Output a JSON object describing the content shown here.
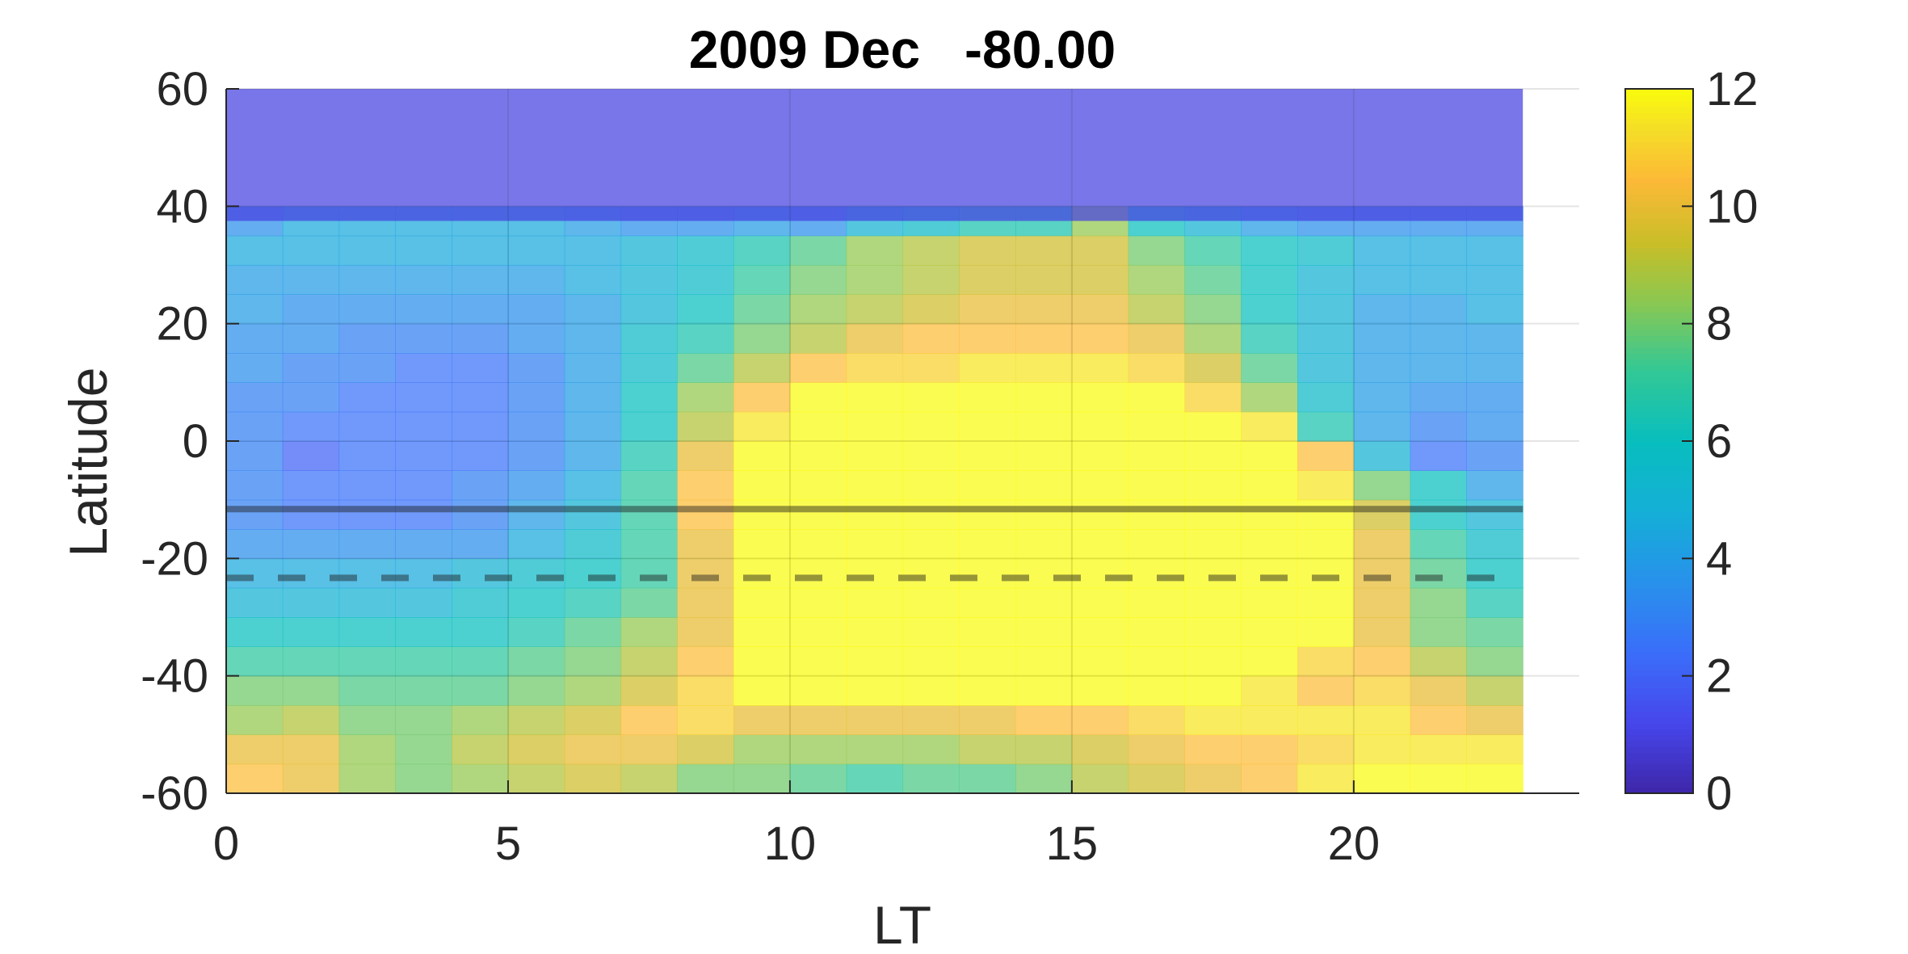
{
  "chart_data": {
    "type": "heatmap",
    "title": "2009 Dec   -80.00",
    "xlabel": "LT",
    "ylabel": "Latitude",
    "xlim": [
      0,
      24
    ],
    "ylim": [
      -60,
      60
    ],
    "xticks": [
      "0",
      "5",
      "10",
      "15",
      "20"
    ],
    "yticks": [
      "60",
      "40",
      "20",
      "0",
      "-20",
      "-40",
      "-60"
    ],
    "colorbar": {
      "min": 0,
      "max": 12,
      "ticks": [
        "12",
        "10",
        "8",
        "6",
        "4",
        "2",
        "0"
      ],
      "colormap": "parula"
    },
    "lt_bins": [
      0,
      1,
      2,
      3,
      4,
      5,
      6,
      7,
      8,
      9,
      10,
      11,
      12,
      13,
      14,
      15,
      16,
      17,
      18,
      19,
      20,
      21,
      22
    ],
    "lat_bins": [
      -57.5,
      -52.5,
      -47.5,
      -42.5,
      -37.5,
      -32.5,
      -27.5,
      -22.5,
      -17.5,
      -12.5,
      -7.5,
      -2.5,
      2.5,
      7.5,
      12.5,
      17.5,
      22.5,
      27.5,
      32.5,
      37.5
    ],
    "values": [
      [
        10.5,
        10.0,
        8.5,
        8.0,
        8.5,
        9.0,
        9.5,
        9.0,
        8.0,
        8.0,
        7.5,
        7.0,
        7.5,
        7.5,
        8.0,
        9.0,
        9.5,
        10.0,
        10.5,
        11.5,
        12.0,
        12.0,
        12.0
      ],
      [
        10.0,
        10.0,
        8.5,
        8.0,
        9.0,
        9.5,
        10.0,
        10.0,
        9.5,
        8.5,
        8.5,
        8.5,
        8.5,
        9.0,
        9.0,
        9.5,
        10.0,
        10.5,
        10.5,
        11.0,
        11.5,
        11.5,
        11.5
      ],
      [
        8.5,
        9.0,
        8.0,
        8.0,
        8.5,
        9.0,
        9.5,
        10.5,
        11.0,
        10.0,
        10.0,
        10.0,
        10.0,
        10.0,
        10.5,
        10.5,
        11.0,
        11.5,
        11.5,
        11.5,
        11.5,
        10.5,
        10.0
      ],
      [
        8.0,
        8.0,
        7.5,
        7.5,
        7.5,
        8.0,
        8.5,
        9.5,
        11.0,
        12.0,
        12.0,
        12.0,
        12.0,
        12.0,
        12.0,
        12.0,
        12.0,
        12.0,
        11.5,
        10.5,
        11.0,
        10.0,
        9.0
      ],
      [
        7.0,
        7.0,
        7.0,
        7.0,
        7.0,
        7.5,
        8.0,
        9.0,
        10.5,
        12.0,
        12.0,
        12.0,
        12.0,
        12.0,
        12.0,
        12.0,
        12.0,
        12.0,
        12.0,
        11.0,
        10.5,
        9.0,
        8.0
      ],
      [
        6.0,
        6.0,
        6.0,
        6.0,
        6.0,
        6.5,
        7.5,
        8.5,
        10.0,
        12.0,
        12.0,
        12.0,
        12.0,
        12.0,
        12.0,
        12.0,
        12.0,
        12.0,
        12.0,
        12.0,
        10.0,
        8.0,
        7.5
      ],
      [
        5.0,
        5.0,
        5.0,
        5.0,
        5.5,
        6.0,
        6.5,
        7.5,
        10.0,
        12.0,
        12.0,
        12.0,
        12.0,
        12.0,
        12.0,
        12.0,
        12.0,
        12.0,
        12.0,
        12.0,
        10.0,
        8.0,
        6.5
      ],
      [
        4.5,
        4.5,
        4.5,
        4.5,
        5.0,
        5.5,
        6.0,
        7.0,
        10.0,
        12.0,
        12.0,
        12.0,
        12.0,
        12.0,
        12.0,
        12.0,
        12.0,
        12.0,
        12.0,
        12.0,
        10.0,
        7.5,
        6.0
      ],
      [
        3.5,
        3.5,
        3.5,
        3.5,
        3.5,
        4.5,
        5.5,
        7.0,
        10.0,
        12.0,
        12.0,
        12.0,
        12.0,
        12.0,
        12.0,
        12.0,
        12.0,
        12.0,
        12.0,
        12.0,
        10.0,
        7.0,
        5.5
      ],
      [
        3.0,
        2.5,
        2.5,
        2.5,
        3.0,
        4.0,
        5.0,
        7.0,
        10.5,
        12.0,
        12.0,
        12.0,
        12.0,
        12.0,
        12.0,
        12.0,
        12.0,
        12.0,
        12.0,
        12.0,
        9.5,
        6.0,
        5.0
      ],
      [
        3.0,
        2.5,
        2.5,
        2.5,
        3.0,
        3.5,
        4.5,
        7.0,
        10.5,
        12.0,
        12.0,
        12.0,
        12.0,
        12.0,
        12.0,
        12.0,
        12.0,
        12.0,
        12.0,
        11.5,
        8.0,
        6.0,
        4.0
      ],
      [
        3.0,
        2.0,
        2.5,
        2.5,
        2.5,
        3.0,
        4.0,
        6.5,
        10.0,
        12.0,
        12.0,
        12.0,
        12.0,
        12.0,
        12.0,
        12.0,
        12.0,
        12.0,
        12.0,
        10.5,
        5.0,
        2.5,
        3.0
      ],
      [
        3.0,
        2.5,
        2.5,
        2.5,
        2.5,
        3.0,
        4.0,
        6.0,
        9.0,
        11.5,
        12.0,
        12.0,
        12.0,
        12.0,
        12.0,
        12.0,
        12.0,
        12.0,
        11.5,
        6.5,
        4.0,
        3.0,
        3.5
      ],
      [
        3.0,
        3.0,
        2.5,
        2.5,
        2.5,
        3.0,
        4.0,
        6.0,
        8.5,
        10.5,
        12.0,
        12.0,
        12.0,
        12.0,
        12.0,
        12.0,
        12.0,
        11.0,
        8.5,
        5.5,
        4.0,
        3.5,
        3.5
      ],
      [
        3.5,
        3.0,
        3.0,
        2.5,
        2.5,
        3.0,
        4.0,
        5.5,
        7.5,
        9.0,
        10.5,
        11.0,
        11.0,
        11.5,
        11.5,
        11.5,
        11.0,
        9.5,
        7.5,
        5.0,
        4.0,
        4.0,
        4.0
      ],
      [
        3.5,
        3.5,
        3.0,
        3.0,
        3.0,
        3.5,
        4.0,
        5.5,
        6.5,
        8.0,
        9.0,
        10.0,
        10.5,
        10.5,
        10.5,
        10.5,
        10.0,
        8.5,
        6.5,
        5.0,
        4.0,
        4.0,
        4.0
      ],
      [
        4.0,
        3.5,
        3.5,
        3.5,
        3.5,
        3.5,
        4.0,
        5.0,
        6.0,
        7.5,
        8.5,
        9.0,
        9.5,
        10.0,
        10.0,
        10.0,
        9.0,
        8.0,
        6.0,
        5.0,
        4.0,
        4.0,
        4.5
      ],
      [
        4.0,
        4.0,
        4.0,
        4.0,
        4.0,
        4.0,
        4.5,
        5.0,
        5.5,
        7.0,
        8.0,
        8.5,
        9.0,
        9.5,
        9.5,
        9.5,
        8.5,
        7.5,
        6.0,
        5.0,
        4.5,
        4.5,
        4.5
      ],
      [
        4.5,
        4.5,
        4.5,
        4.5,
        4.5,
        4.5,
        4.5,
        5.0,
        5.5,
        6.5,
        7.5,
        8.5,
        9.0,
        9.5,
        9.5,
        9.5,
        8.0,
        7.0,
        6.0,
        5.5,
        4.5,
        4.5,
        4.5
      ],
      [
        3.5,
        4.5,
        4.5,
        4.5,
        4.5,
        4.5,
        4.0,
        3.5,
        3.5,
        4.0,
        3.5,
        5.0,
        5.5,
        6.5,
        6.5,
        8.5,
        6.0,
        5.0,
        4.0,
        3.5,
        3.5,
        3.5,
        3.5
      ]
    ],
    "no_data_value": 1.0,
    "no_data_lat_range": [
      37.5,
      60
    ],
    "reference_lines": [
      {
        "style": "solid",
        "latitude": -11.6
      },
      {
        "style": "dashed",
        "latitude": -23.3
      }
    ],
    "grid": true
  }
}
